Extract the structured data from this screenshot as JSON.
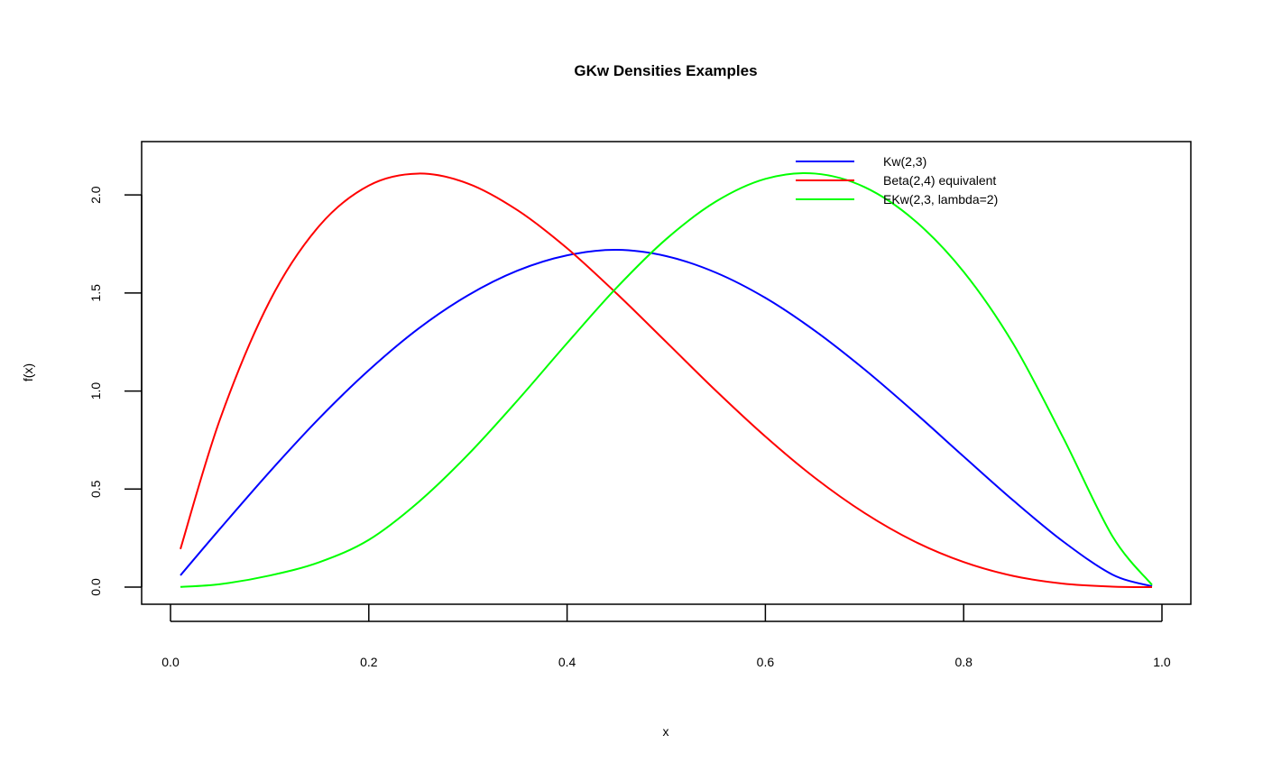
{
  "chart_data": {
    "type": "line",
    "title": "GKw Densities Examples",
    "xlabel": "x",
    "ylabel": "f(x)",
    "xlim": [
      0.01,
      0.99
    ],
    "ylim": [
      0.0,
      2.18
    ],
    "x_ticks": [
      "0.0",
      "0.2",
      "0.4",
      "0.6",
      "0.8",
      "1.0"
    ],
    "y_ticks": [
      "0.0",
      "0.5",
      "1.0",
      "1.5",
      "2.0"
    ],
    "legend_position": "top-right",
    "grid": false,
    "x": [
      0.01,
      0.05,
      0.1,
      0.15,
      0.2,
      0.25,
      0.3,
      0.35,
      0.4,
      0.45,
      0.5,
      0.55,
      0.6,
      0.65,
      0.7,
      0.75,
      0.8,
      0.85,
      0.9,
      0.95,
      0.99
    ],
    "series": [
      {
        "name": "Kw(2,3)",
        "color": "#0000ff",
        "values": [
          0.06,
          0.298,
          0.588,
          0.861,
          1.106,
          1.318,
          1.488,
          1.614,
          1.692,
          1.72,
          1.688,
          1.604,
          1.475,
          1.307,
          1.11,
          0.893,
          0.666,
          0.442,
          0.234,
          0.064,
          0.004
        ]
      },
      {
        "name": "Beta(2,4) equivalent",
        "color": "#ff0000",
        "values": [
          0.194,
          0.857,
          1.458,
          1.842,
          2.048,
          2.109,
          2.058,
          1.922,
          1.728,
          1.497,
          1.25,
          1.002,
          0.768,
          0.557,
          0.378,
          0.234,
          0.128,
          0.057,
          0.018,
          0.0025,
          2e-05
        ]
      },
      {
        "name": "EKw(2,3, lambda=2)",
        "color": "#00ff00",
        "values": [
          0.001,
          0.015,
          0.059,
          0.127,
          0.241,
          0.433,
          0.675,
          0.952,
          1.244,
          1.527,
          1.775,
          1.966,
          2.082,
          2.109,
          2.04,
          1.872,
          1.608,
          1.241,
          0.766,
          0.26,
          0.011
        ]
      }
    ]
  }
}
